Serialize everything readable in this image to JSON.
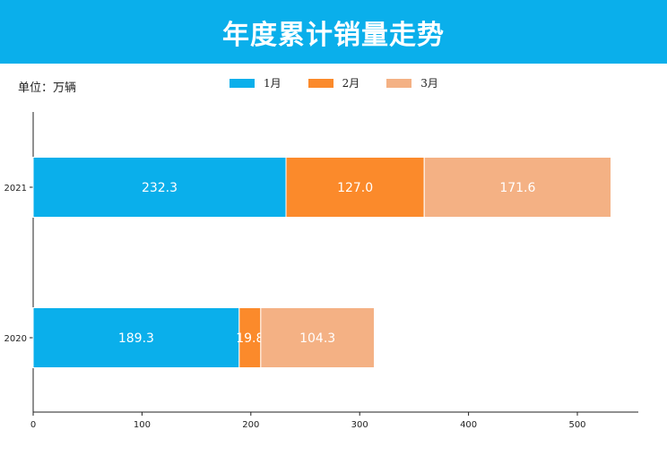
{
  "header": {
    "title": "年度累计销量走势"
  },
  "unit_label": "单位：万辆",
  "colors": {
    "banner": "#0aafeb"
  },
  "chart_data": {
    "type": "bar",
    "orientation": "horizontal",
    "stacked": true,
    "categories": [
      "2021",
      "2020"
    ],
    "series": [
      {
        "name": "1月",
        "color": "#0aafeb",
        "values": [
          232.3,
          189.3
        ],
        "labels": [
          "232.3",
          "189.3"
        ]
      },
      {
        "name": "2月",
        "color": "#fb8a2b",
        "values": [
          127.0,
          19.8
        ],
        "labels": [
          "127.0",
          "19.8"
        ]
      },
      {
        "name": "3月",
        "color": "#f4b184",
        "values": [
          171.6,
          104.3
        ],
        "labels": [
          "171.6",
          "104.3"
        ]
      }
    ],
    "xlim": [
      0,
      556
    ],
    "xticks": [
      0,
      100,
      200,
      300,
      400,
      500
    ],
    "grid": false,
    "legend": "top-center"
  }
}
